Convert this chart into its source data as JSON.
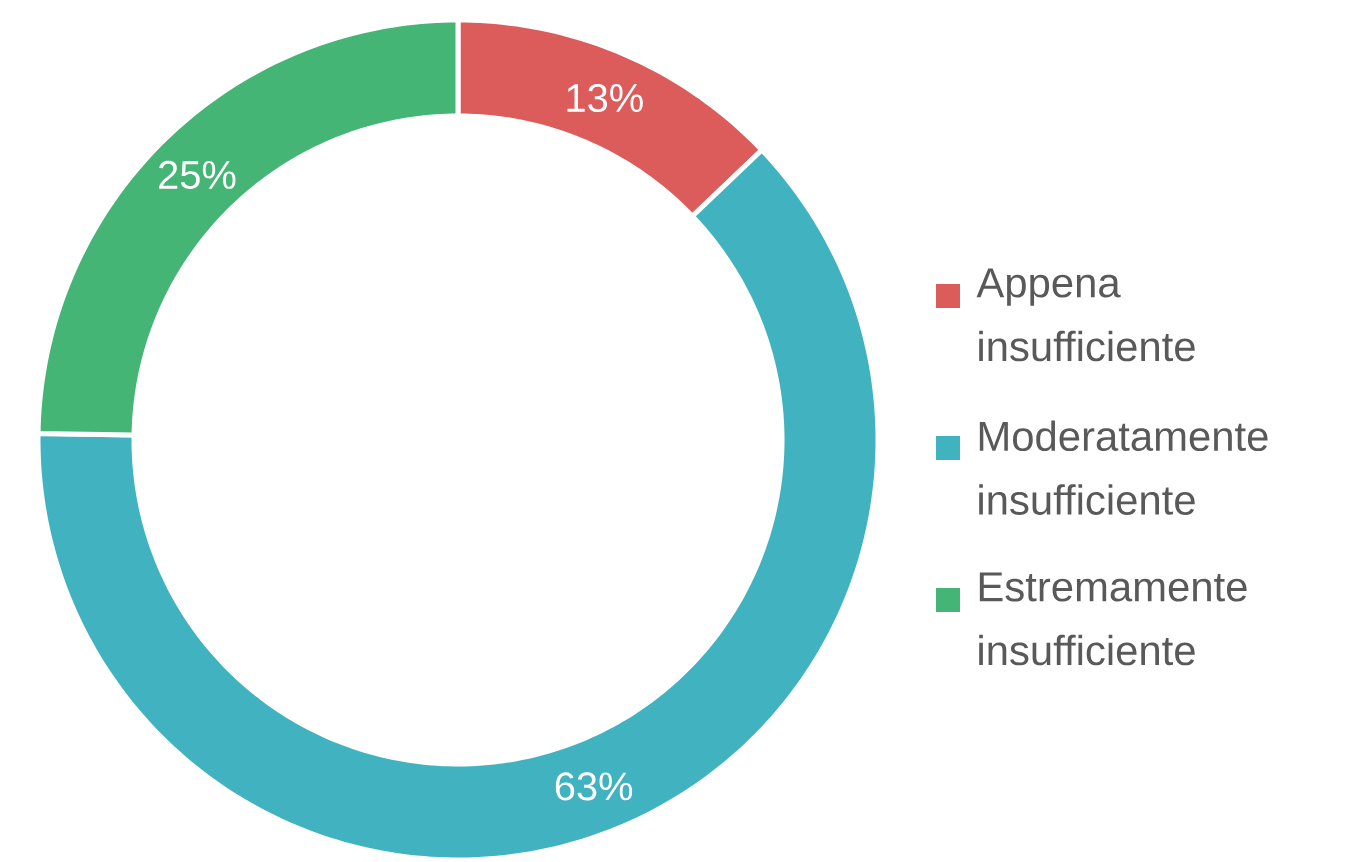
{
  "chart_data": {
    "type": "donut",
    "categories": [
      "Appena insufficiente",
      "Moderatamente insufficiente",
      "Estremamente insufficiente"
    ],
    "values": [
      13,
      63,
      25
    ],
    "colors": [
      "#dc5c5c",
      "#41b3c0",
      "#44b574"
    ],
    "value_labels": [
      "13%",
      "63%",
      "25%"
    ],
    "legend": "right"
  }
}
